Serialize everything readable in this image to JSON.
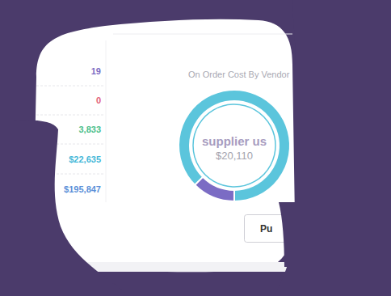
{
  "stats": [
    {
      "text": "19",
      "color": "#7b6cc4"
    },
    {
      "text": "0",
      "color": "#e2607a"
    },
    {
      "text": "3,833",
      "color": "#4cc08b"
    },
    {
      "text": "$22,635",
      "color": "#45b8d8"
    },
    {
      "text": "$195,847",
      "color": "#5a8fd8"
    }
  ],
  "button": {
    "label": "Pu"
  },
  "chart_data": {
    "type": "pie",
    "title": "On Order Cost By Vendor",
    "categories": [
      "supplier us",
      null
    ],
    "values": [
      20110,
      2870
    ],
    "value_labels": [
      "$20,110",
      null
    ],
    "colors": [
      "#5bc5dc",
      "#7b6cc4"
    ]
  }
}
